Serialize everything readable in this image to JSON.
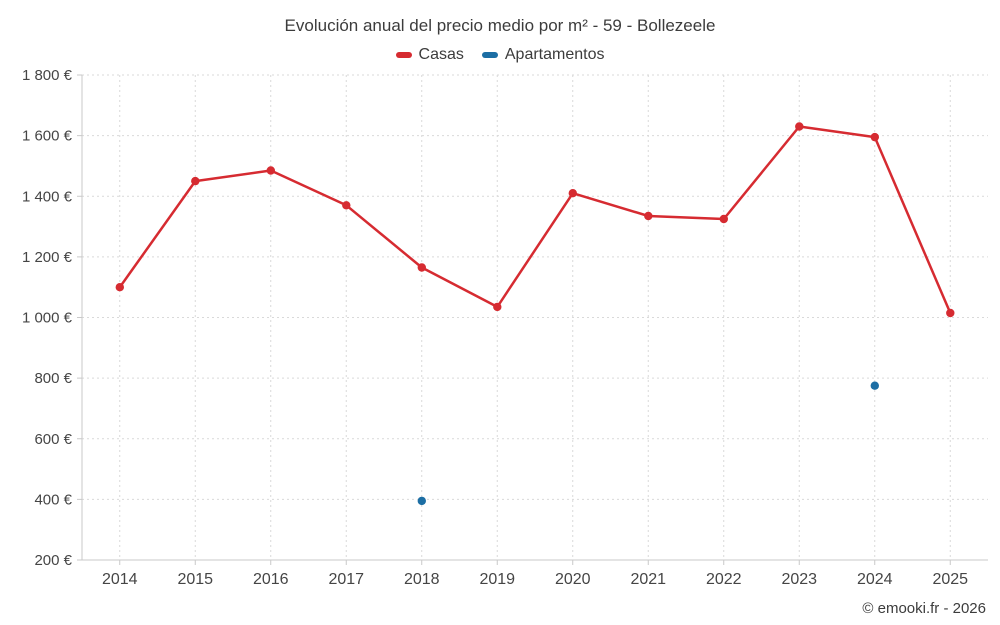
{
  "header": {
    "title": "Evolución anual del precio medio por m² - 59 - Bollezeele"
  },
  "footer": {
    "credit": "© emooki.fr - 2026"
  },
  "chart_data": {
    "type": "line",
    "title": "Evolución anual del precio medio por m² - 59 - Bollezeele",
    "xlabel": "",
    "ylabel": "",
    "categories": [
      "2014",
      "2015",
      "2016",
      "2017",
      "2018",
      "2019",
      "2020",
      "2021",
      "2022",
      "2023",
      "2024",
      "2025"
    ],
    "series": [
      {
        "name": "Casas",
        "color": "#d62b31",
        "values": [
          1100,
          1450,
          1485,
          1370,
          1165,
          1035,
          1410,
          1335,
          1325,
          1630,
          1595,
          1015
        ]
      },
      {
        "name": "Apartamentos",
        "color": "#1c6ea4",
        "values": [
          null,
          null,
          null,
          null,
          395,
          null,
          null,
          null,
          null,
          null,
          775,
          null
        ]
      }
    ],
    "ylim": [
      200,
      1800
    ],
    "ytick_step": 200,
    "ytick_suffix": " €",
    "grid": true,
    "legend_position": "top"
  }
}
